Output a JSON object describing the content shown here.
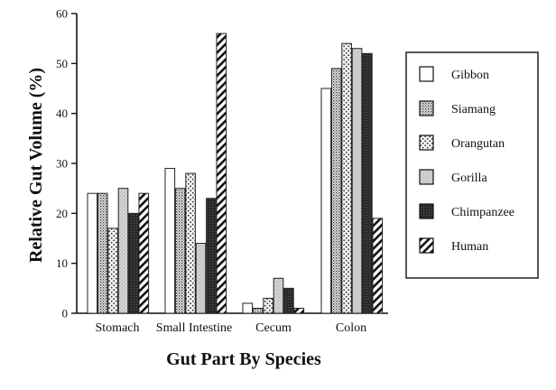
{
  "chart_data": {
    "type": "bar",
    "categories": [
      "Stomach",
      "Small Intestine",
      "Cecum",
      "Colon"
    ],
    "series": [
      {
        "name": "Gibbon",
        "values": [
          24,
          29,
          2,
          45
        ],
        "pattern": "white"
      },
      {
        "name": "Siamang",
        "values": [
          24,
          25,
          1,
          49
        ],
        "pattern": "dense-dots"
      },
      {
        "name": "Orangutan",
        "values": [
          17,
          28,
          3,
          54
        ],
        "pattern": "sparse-dots"
      },
      {
        "name": "Gorilla",
        "values": [
          25,
          14,
          7,
          53
        ],
        "pattern": "light-stipple"
      },
      {
        "name": "Chimpanzee",
        "values": [
          20,
          23,
          5,
          52
        ],
        "pattern": "dark"
      },
      {
        "name": "Human",
        "values": [
          24,
          56,
          1,
          19
        ],
        "pattern": "diagonal-hatch"
      }
    ],
    "xlabel": "Gut Part By Species",
    "ylabel": "Relative Gut Volume (%)",
    "ylim": [
      0,
      60
    ],
    "yticks": [
      0,
      10,
      20,
      30,
      40,
      50,
      60
    ],
    "grid": false,
    "legend_position": "right"
  }
}
